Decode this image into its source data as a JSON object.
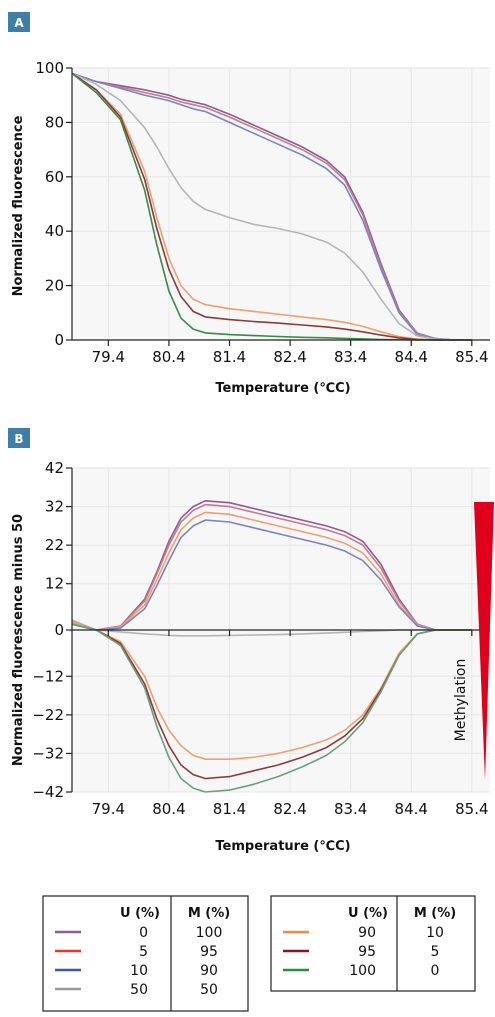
{
  "chart_data": [
    {
      "panel_label": "A",
      "type": "line",
      "xlabel": "Temperature (℃C)",
      "ylabel": "Normalized fluorescence",
      "xlim": [
        78.8,
        85.7
      ],
      "ylim": [
        0,
        100
      ],
      "x_ticks": [
        79.4,
        80.4,
        81.4,
        82.4,
        83.4,
        84.4,
        85.4
      ],
      "y_ticks": [
        0,
        20,
        40,
        60,
        80,
        100
      ],
      "grid": true,
      "x": [
        78.8,
        79.2,
        79.6,
        80.0,
        80.2,
        80.4,
        80.6,
        80.8,
        81.0,
        81.4,
        81.8,
        82.2,
        82.6,
        83.0,
        83.3,
        83.6,
        83.9,
        84.2,
        84.5,
        84.8,
        85.1,
        85.4
      ],
      "series": [
        {
          "values": [
            98,
            95,
            93.5,
            92,
            91,
            90,
            88.5,
            87.5,
            86.5,
            83,
            79,
            75,
            71,
            66,
            60,
            47,
            28,
            11,
            2.5,
            0.5,
            0,
            0
          ]
        },
        {
          "values": [
            98,
            95,
            93,
            91,
            90,
            89,
            87.5,
            86.5,
            85.5,
            82,
            78,
            74,
            70,
            65,
            59,
            46,
            27,
            10.5,
            2.5,
            0.5,
            0,
            0
          ]
        },
        {
          "values": [
            98,
            95,
            92.5,
            90,
            89,
            88,
            86.5,
            85,
            84,
            80,
            76,
            72,
            68,
            63,
            57,
            44,
            26,
            10,
            2,
            0.5,
            0,
            0
          ]
        },
        {
          "values": [
            98,
            94,
            88,
            78,
            71,
            63,
            56,
            51,
            48,
            45,
            42.5,
            41,
            39,
            36,
            32,
            25,
            15,
            6,
            1.5,
            0.3,
            0,
            0
          ]
        },
        {
          "values": [
            98,
            92,
            83,
            62,
            45,
            30,
            20,
            15,
            13,
            11.5,
            10.5,
            9.5,
            8.5,
            7.5,
            6.5,
            5,
            3,
            1.2,
            0.3,
            0,
            0,
            0
          ]
        },
        {
          "values": [
            98,
            92,
            82,
            59,
            41,
            26,
            16,
            10.5,
            8.5,
            7.5,
            6.8,
            6.2,
            5.5,
            4.8,
            4,
            3,
            1.8,
            0.8,
            0.2,
            0,
            0,
            0
          ]
        },
        {
          "values": [
            98,
            91,
            81,
            55,
            35,
            18,
            8,
            4,
            2.6,
            2,
            1.6,
            1.3,
            1,
            0.8,
            0.6,
            0.4,
            0.2,
            0.1,
            0,
            0,
            0,
            0
          ]
        }
      ]
    },
    {
      "panel_label": "B",
      "type": "line",
      "xlabel": "Temperature (℃C)",
      "ylabel": "Normalized fluorescence minus 50",
      "xlim": [
        78.8,
        85.7
      ],
      "ylim": [
        -42,
        42
      ],
      "x_ticks": [
        79.4,
        80.4,
        81.4,
        82.4,
        83.4,
        84.4,
        85.4
      ],
      "y_ticks": [
        42,
        32,
        22,
        12,
        0,
        -12,
        -22,
        -32,
        -42
      ],
      "grid": true,
      "annotation": "Methylation",
      "x": [
        78.8,
        79.2,
        79.6,
        80.0,
        80.2,
        80.4,
        80.6,
        80.8,
        81.0,
        81.4,
        81.8,
        82.2,
        82.6,
        83.0,
        83.3,
        83.6,
        83.9,
        84.2,
        84.5,
        84.8,
        85.1,
        85.4
      ],
      "series": [
        {
          "values": [
            2.5,
            0,
            1,
            8,
            15,
            23,
            29,
            32,
            33.5,
            33,
            31.5,
            30,
            28.5,
            27,
            25.5,
            23,
            17,
            8,
            1.5,
            0,
            0,
            0
          ]
        },
        {
          "values": [
            2.5,
            0,
            1,
            7.5,
            14.5,
            22,
            28,
            31,
            32.5,
            32,
            30.5,
            29,
            27.5,
            26,
            24.5,
            22,
            16,
            7.5,
            1.5,
            0,
            0,
            0
          ]
        },
        {
          "values": [
            2.5,
            0,
            0.8,
            6.5,
            13,
            20,
            26,
            29,
            30.5,
            30,
            28.5,
            27,
            25.5,
            24,
            22.5,
            20,
            14.5,
            6.5,
            1.2,
            0,
            0,
            0
          ]
        },
        {
          "values": [
            2,
            0,
            0.5,
            5.5,
            11.5,
            18,
            24,
            27,
            28.5,
            28,
            26.5,
            25,
            23.5,
            22,
            20.5,
            18,
            13,
            6,
            1,
            0,
            0,
            0
          ]
        },
        {
          "values": [
            2,
            0,
            -0.5,
            -1,
            -1.2,
            -1.4,
            -1.5,
            -1.5,
            -1.5,
            -1.4,
            -1.3,
            -1.2,
            -1,
            -0.8,
            -0.6,
            -0.4,
            -0.2,
            0,
            0,
            0,
            0,
            0
          ]
        },
        {
          "values": [
            1.5,
            0,
            -3,
            -12,
            -20,
            -26,
            -30,
            -32.5,
            -33.5,
            -33.5,
            -33,
            -32,
            -30.5,
            -28.5,
            -26,
            -22,
            -15,
            -6,
            -1,
            0,
            0,
            0
          ]
        },
        {
          "values": [
            1.5,
            0,
            -3.5,
            -14,
            -23,
            -30,
            -35,
            -37.5,
            -38.5,
            -38,
            -36.5,
            -35,
            -33,
            -30.5,
            -27.5,
            -23,
            -15.5,
            -6.5,
            -1,
            0,
            0,
            0
          ]
        },
        {
          "values": [
            1.5,
            0,
            -4,
            -15,
            -25,
            -33,
            -38.5,
            -41,
            -42,
            -41.5,
            -40,
            -38,
            -35.5,
            -32.5,
            -29,
            -24,
            -16,
            -6.5,
            -1,
            0,
            0,
            0
          ]
        }
      ]
    }
  ],
  "legend": {
    "headers": {
      "u": "U (%)",
      "m": "M (%)"
    },
    "items": [
      {
        "color": "#8e5b93",
        "u": "0",
        "m": "100"
      },
      {
        "color": "#e23a2f",
        "u": "5",
        "m": "95"
      },
      {
        "color": "#3f55a5",
        "u": "10",
        "m": "90"
      },
      {
        "color": "#9a9a9a",
        "u": "50",
        "m": "50"
      },
      {
        "color": "#f0884e",
        "u": "90",
        "m": "10"
      },
      {
        "color": "#7a1d2a",
        "u": "95",
        "m": "5"
      },
      {
        "color": "#2d8a3e",
        "u": "100",
        "m": "0"
      }
    ]
  },
  "colors": {
    "series_a": [
      "#8e5b93",
      "#c77a8a",
      "#7a84c4",
      "#b5b5b5",
      "#f0a070",
      "#8a3a3a",
      "#3a8a4a"
    ],
    "series_b": [
      "#8e5b93",
      "#c77a8a",
      "#f0a070",
      "#7a84c4",
      "#b5b5b5",
      "#f0a070",
      "#8a3a3a",
      "#6aa07a"
    ],
    "methylation_wedge": "#e0001b",
    "badge": "#3f7ea6"
  }
}
